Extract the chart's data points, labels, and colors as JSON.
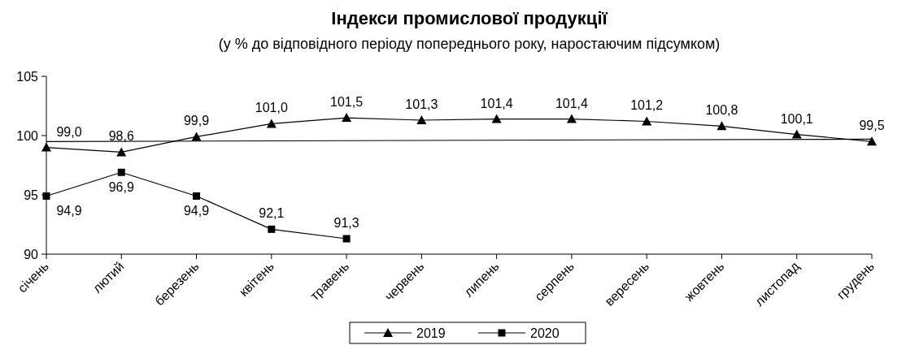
{
  "chart_data": {
    "type": "line",
    "title": "Індекси промислової продукції",
    "subtitle": "(у % до відповідного періоду попереднього року, наростаючим підсумком)",
    "categories": [
      "січень",
      "лютий",
      "березень",
      "квітень",
      "травень",
      "червень",
      "липень",
      "серпень",
      "вересень",
      "жовтень",
      "листопад",
      "грудень"
    ],
    "series": [
      {
        "name": "2019",
        "color": "#000000",
        "marker": "triangle",
        "values": [
          99.0,
          98.6,
          99.9,
          101.0,
          101.5,
          101.3,
          101.4,
          101.4,
          101.2,
          100.8,
          100.1,
          99.5
        ],
        "value_labels": [
          "99,0",
          "98,6",
          "99,9",
          "101,0",
          "101,5",
          "101,3",
          "101,4",
          "101,4",
          "101,2",
          "100,8",
          "100,1",
          "99,5"
        ]
      },
      {
        "name": "2020",
        "color": "#000000",
        "marker": "square",
        "values": [
          94.9,
          96.9,
          94.9,
          92.1,
          91.3,
          null,
          null,
          null,
          null,
          null,
          null,
          null
        ],
        "value_labels": [
          "94,9",
          "96,9",
          "94,9",
          "92,1",
          "91,3",
          null,
          null,
          null,
          null,
          null,
          null,
          null
        ]
      },
      {
        "type": "line",
        "color": "#000000",
        "marker": "none",
        "x": [
          "січень",
          "грудень"
        ],
        "values": [
          99.5,
          99.7
        ]
      }
    ],
    "ylim": [
      90,
      105
    ],
    "yticks": [
      90,
      95,
      100,
      105
    ],
    "grid": false,
    "legend": "bottom",
    "line_style": "solid"
  }
}
